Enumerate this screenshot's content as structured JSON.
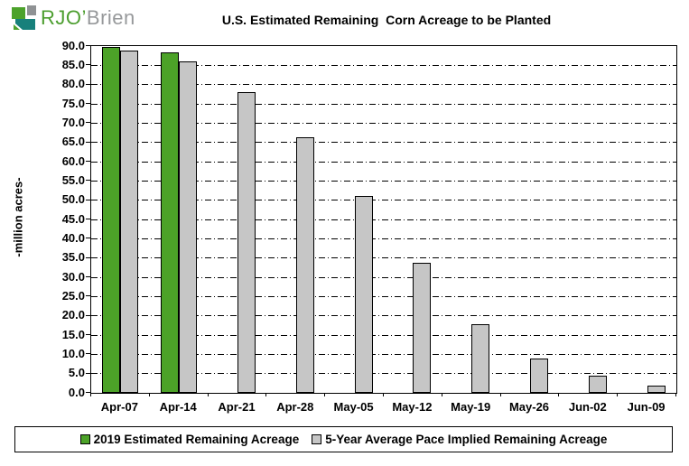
{
  "logo": {
    "brand_green": "RJO’",
    "brand_gray": "Brien"
  },
  "chart_data": {
    "type": "bar",
    "title": "U.S. Estimated Remaining  Corn Acreage to be Planted",
    "ylabel": "-million acres-",
    "xlabel": "",
    "ylim": [
      0,
      90
    ],
    "ytick_step": 5,
    "ytick_decimals": 1,
    "grid": "horizontal dash-dot every 5 units",
    "legend_position": "bottom boxed",
    "categories": [
      "Apr-07",
      "Apr-14",
      "Apr-21",
      "Apr-28",
      "May-05",
      "May-12",
      "May-19",
      "May-26",
      "Jun-02",
      "Jun-09"
    ],
    "series": [
      {
        "name": "2019 Estimated Remaining Acreage",
        "color": "#4CA228",
        "values": [
          89.7,
          88.3,
          null,
          null,
          null,
          null,
          null,
          null,
          null,
          null
        ]
      },
      {
        "name": "5-Year Average Pace Implied Remaining Acreage",
        "color": "#C6C6C6",
        "values": [
          88.8,
          86.0,
          78.0,
          66.3,
          51.0,
          33.7,
          17.9,
          9.0,
          4.4,
          1.9
        ]
      }
    ]
  },
  "colors": {
    "axis": "#000000",
    "bar_border": "#000000",
    "background": "#FFFFFF",
    "series_green": "#4CA228",
    "series_gray": "#C6C6C6",
    "logo_green": "#4CA22B",
    "logo_teal": "#17807B",
    "logo_gray": "#8F9294",
    "brand_text_green": "#4C9E2F",
    "brand_text_gray": "#97999B"
  }
}
